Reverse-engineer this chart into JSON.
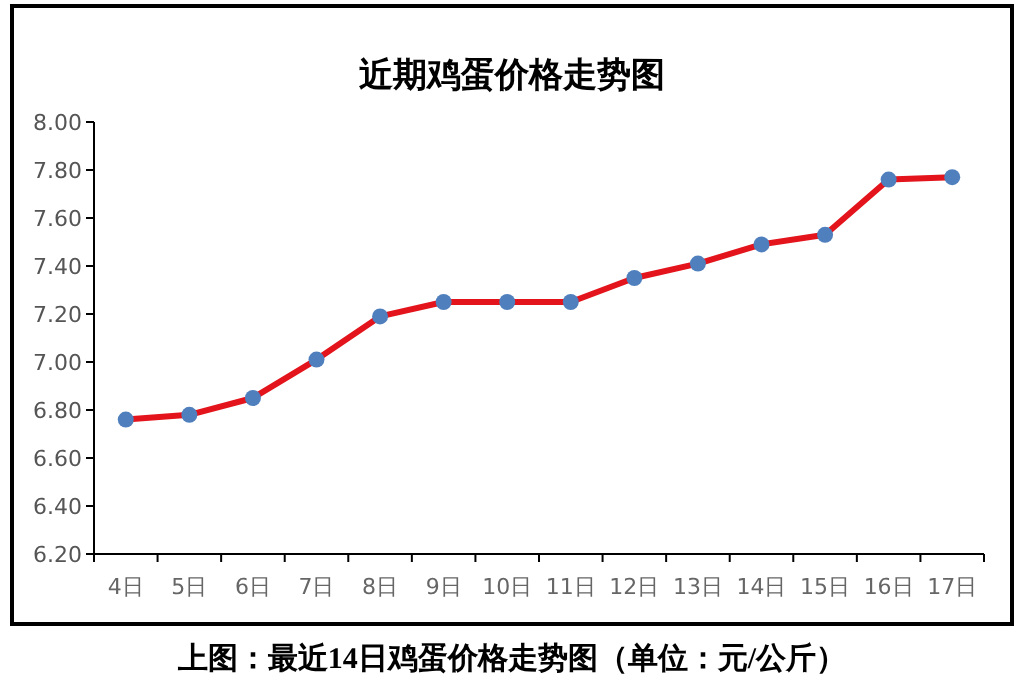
{
  "chart_data": {
    "type": "line",
    "title": "近期鸡蛋价格走势图",
    "categories": [
      "4日",
      "5日",
      "6日",
      "7日",
      "8日",
      "9日",
      "10日",
      "11日",
      "12日",
      "13日",
      "14日",
      "15日",
      "16日",
      "17日"
    ],
    "series": [
      {
        "color": "#e3141b",
        "values": [
          6.76,
          6.78,
          6.85,
          7.01,
          7.19,
          7.25,
          7.25,
          7.25,
          7.35,
          7.41,
          7.49,
          7.53,
          7.76,
          7.77
        ]
      }
    ],
    "ylim": [
      6.2,
      8.0
    ],
    "yticks": [
      {
        "value": 6.2,
        "label": "6.20"
      },
      {
        "value": 6.4,
        "label": "6.40"
      },
      {
        "value": 6.6,
        "label": "6.60"
      },
      {
        "value": 6.8,
        "label": "6.80"
      },
      {
        "value": 7.0,
        "label": "7.00"
      },
      {
        "value": 7.2,
        "label": "7.20"
      },
      {
        "value": 7.4,
        "label": "7.40"
      },
      {
        "value": 7.6,
        "label": "7.60"
      },
      {
        "value": 7.8,
        "label": "7.80"
      },
      {
        "value": 8.0,
        "label": "8.00"
      }
    ],
    "marker": "circle",
    "annotations": [
      "上图：最近14日鸡蛋价格走势图（单位：元/公斤）"
    ]
  }
}
